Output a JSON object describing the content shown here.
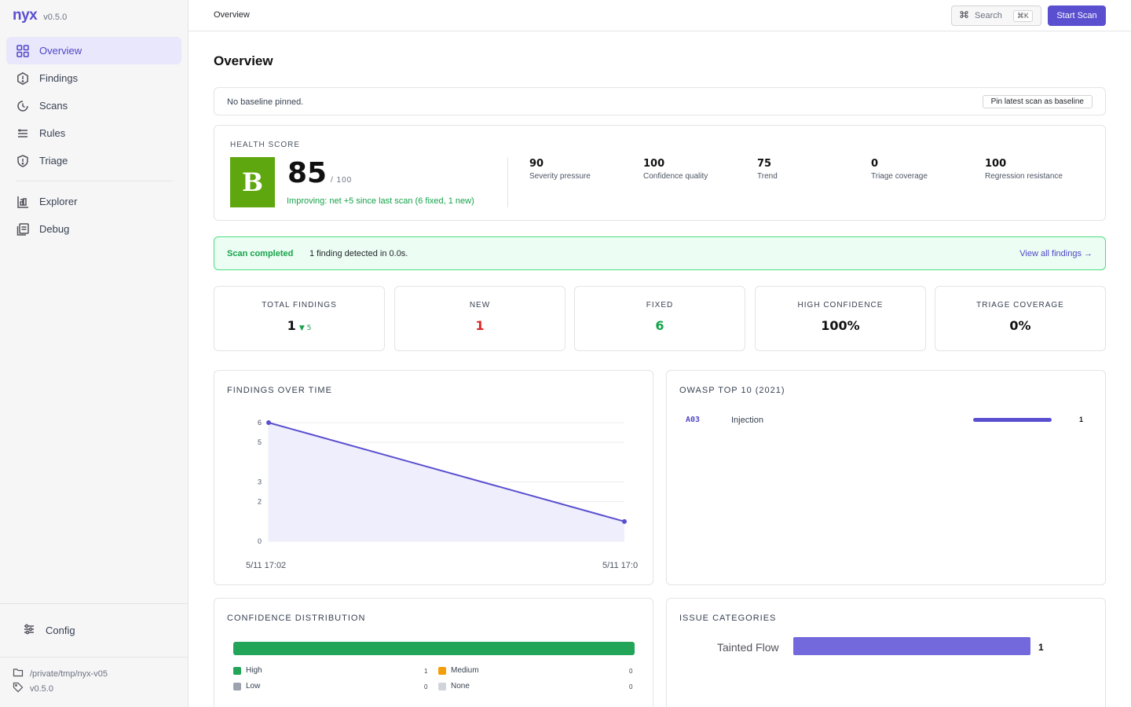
{
  "brand": {
    "name": "nyx",
    "version": "v0.5.0"
  },
  "sidebar": {
    "items": [
      {
        "label": "Overview",
        "icon": "grid-icon",
        "active": true
      },
      {
        "label": "Findings",
        "icon": "alert-circle-icon"
      },
      {
        "label": "Scans",
        "icon": "clock-icon"
      },
      {
        "label": "Rules",
        "icon": "list-icon"
      },
      {
        "label": "Triage",
        "icon": "shield-icon"
      }
    ],
    "items2": [
      {
        "label": "Explorer",
        "icon": "explorer-icon"
      },
      {
        "label": "Debug",
        "icon": "debug-icon"
      }
    ],
    "config_label": "Config",
    "path": "/private/tmp/nyx-v05",
    "version": "v0.5.0"
  },
  "topbar": {
    "breadcrumb": "Overview",
    "search_label": "Search",
    "search_shortcut": "⌘K",
    "start_scan_label": "Start Scan"
  },
  "page": {
    "title": "Overview"
  },
  "baseline": {
    "message": "No baseline pinned.",
    "pin_label": "Pin latest scan as baseline"
  },
  "health": {
    "label": "HEALTH SCORE",
    "grade": "B",
    "score": "85",
    "score_max": "/ 100",
    "trend_text": "Improving: net +5 since last scan (6 fixed, 1 new)",
    "grade_color": "#5ea70f",
    "metrics": [
      {
        "value": "90",
        "label": "Severity pressure"
      },
      {
        "value": "100",
        "label": "Confidence quality"
      },
      {
        "value": "75",
        "label": "Trend"
      },
      {
        "value": "0",
        "label": "Triage coverage"
      },
      {
        "value": "100",
        "label": "Regression resistance"
      }
    ]
  },
  "scan_status": {
    "status": "Scan completed",
    "message": "1 finding detected in 0.0s.",
    "link": "View all findings →"
  },
  "stats": [
    {
      "label": "TOTAL FINDINGS",
      "value": "1",
      "delta": "▼ 5",
      "color": "#111111"
    },
    {
      "label": "NEW",
      "value": "1",
      "color": "#dc2626"
    },
    {
      "label": "FIXED",
      "value": "6",
      "color": "#16a34a"
    },
    {
      "label": "HIGH CONFIDENCE",
      "value": "100%",
      "color": "#111111"
    },
    {
      "label": "TRIAGE COVERAGE",
      "value": "0%",
      "color": "#111111"
    }
  ],
  "findings_over_time": {
    "title": "FINDINGS OVER TIME"
  },
  "chart_data": {
    "type": "area",
    "x": [
      "5/11 17:02",
      "5/11 17:0"
    ],
    "y_ticks": [
      "0",
      "2",
      "3",
      "5",
      "6"
    ],
    "values": [
      6,
      1
    ],
    "ylim": [
      0,
      6
    ],
    "grid": true,
    "color": "#5a4fcf"
  },
  "owasp": {
    "title": "OWASP TOP 10 (2021)",
    "items": [
      {
        "code": "A03",
        "name": "Injection",
        "count": "1"
      }
    ]
  },
  "confidence": {
    "title": "CONFIDENCE DISTRIBUTION",
    "legend": [
      {
        "label": "High",
        "count": "1",
        "color": "#22a559"
      },
      {
        "label": "Medium",
        "count": "0",
        "color": "#f59e0b"
      },
      {
        "label": "Low",
        "count": "0",
        "color": "#9ca3af"
      },
      {
        "label": "None",
        "count": "0",
        "color": "#d1d5db"
      }
    ]
  },
  "categories": {
    "title": "ISSUE CATEGORIES",
    "items": [
      {
        "label": "Tainted Flow",
        "count": "1"
      }
    ]
  }
}
